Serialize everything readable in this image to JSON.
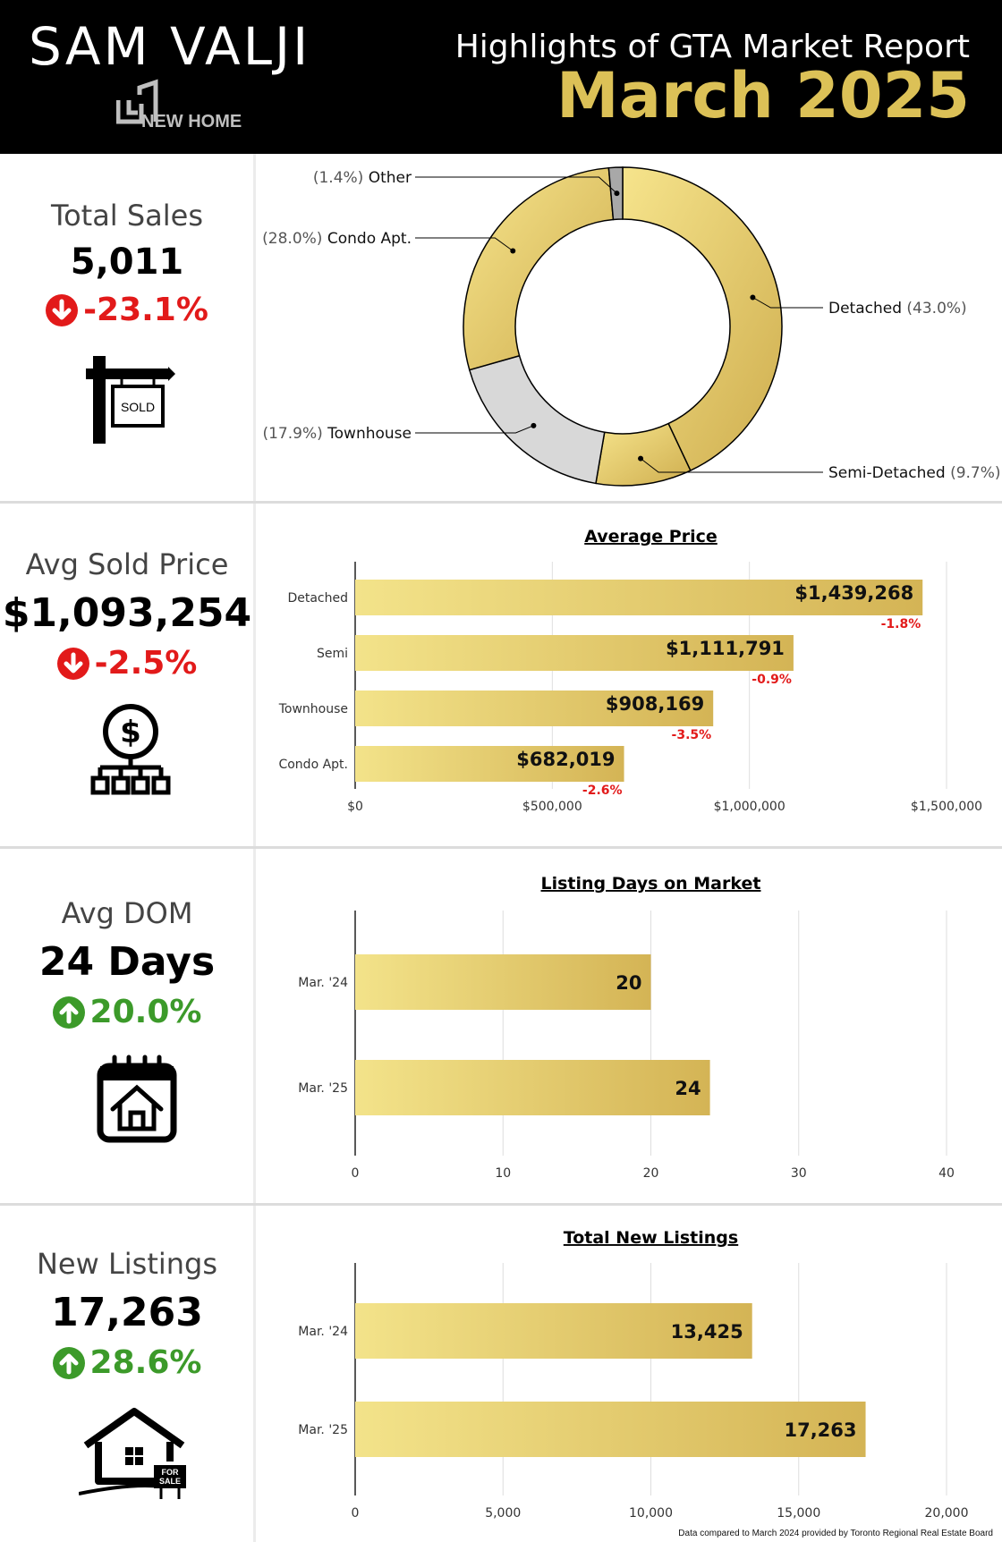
{
  "header": {
    "brand_name": "SAM VALJI",
    "brand_logo_text": "NEW HOME",
    "title": "Highlights of GTA Market Report",
    "month": "March 2025"
  },
  "colors": {
    "gold": "#dcc157",
    "gold_light": "#f3e38a",
    "gold_dark": "#c9a84a",
    "grey": "#d4d4d4",
    "red": "#e21a1a",
    "green": "#3c9a2a"
  },
  "stats": [
    {
      "label": "Total Sales",
      "value": "5,011",
      "change": "-23.1%",
      "direction": "down",
      "icon": "sold-sign-icon"
    },
    {
      "label": "Avg Sold Price",
      "value": "$1,093,254",
      "change": "-2.5%",
      "direction": "down",
      "icon": "dollar-network-icon"
    },
    {
      "label": "Avg DOM",
      "value": "24 Days",
      "change": "20.0%",
      "direction": "up",
      "icon": "calendar-house-icon"
    },
    {
      "label": "New Listings",
      "value": "17,263",
      "change": "28.6%",
      "direction": "up",
      "icon": "house-for-sale-icon"
    }
  ],
  "icon_text": {
    "sold": "SOLD",
    "for_sale": "FOR SALE"
  },
  "footnote": "Data compared to March 2024 provided by Toronto Regional Real Estate Board",
  "chart_data": [
    {
      "type": "pie",
      "donut": true,
      "title": "",
      "slices": [
        {
          "label": "Detached",
          "pct_text": "(43.0%)",
          "value": 43.0,
          "color": "#dcc157"
        },
        {
          "label": "Semi-Detached",
          "pct_text": "(9.7%)",
          "value": 9.7,
          "color": "#e8d36a"
        },
        {
          "label": "Townhouse",
          "pct_text": "(17.9%)",
          "value": 17.9,
          "color": "#d8d8d8"
        },
        {
          "label": "Condo Apt.",
          "pct_text": "(28.0%)",
          "value": 28.0,
          "color": "#e9cf66"
        },
        {
          "label": "Other",
          "pct_text": "(1.4%)",
          "value": 1.4,
          "color": "#a8a8a8"
        }
      ]
    },
    {
      "type": "bar",
      "orientation": "horizontal",
      "title": "Average Price",
      "categories": [
        "Detached",
        "Semi",
        "Townhouse",
        "Condo Apt."
      ],
      "values": [
        1439268,
        1111791,
        908169,
        682019
      ],
      "value_labels": [
        "$1,439,268",
        "$1,111,791",
        "$908,169",
        "$682,019"
      ],
      "change_labels": [
        "-1.8%",
        "-0.9%",
        "-3.5%",
        "-2.6%"
      ],
      "xlim": [
        0,
        1500000
      ],
      "ticks": [
        0,
        500000,
        1000000,
        1500000
      ],
      "tick_labels": [
        "$0",
        "$500,000",
        "$1,000,000",
        "$1,500,000"
      ],
      "grid": true
    },
    {
      "type": "bar",
      "orientation": "horizontal",
      "title": "Listing Days on Market",
      "categories": [
        "Mar. '24",
        "Mar. '25"
      ],
      "values": [
        20,
        24
      ],
      "value_labels": [
        "20",
        "24"
      ],
      "xlim": [
        0,
        40
      ],
      "ticks": [
        0,
        10,
        20,
        30,
        40
      ],
      "tick_labels": [
        "0",
        "10",
        "20",
        "30",
        "40"
      ],
      "grid": true
    },
    {
      "type": "bar",
      "orientation": "horizontal",
      "title": "Total New Listings",
      "categories": [
        "Mar. '24",
        "Mar. '25"
      ],
      "values": [
        13425,
        17263
      ],
      "value_labels": [
        "13,425",
        "17,263"
      ],
      "xlim": [
        0,
        20000
      ],
      "ticks": [
        0,
        5000,
        10000,
        15000,
        20000
      ],
      "tick_labels": [
        "0",
        "5,000",
        "10,000",
        "15,000",
        "20,000"
      ],
      "grid": true
    }
  ]
}
